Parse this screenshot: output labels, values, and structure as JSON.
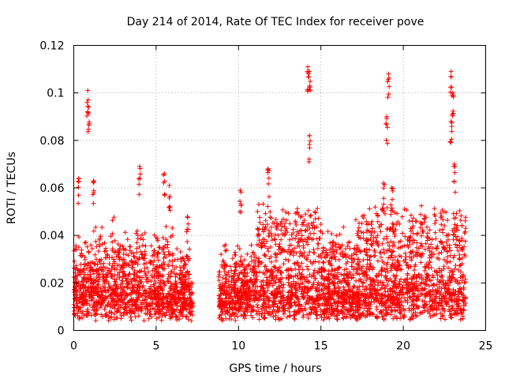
{
  "chart_data": {
    "type": "scatter",
    "title": "Day 214 of 2014, Rate Of TEC Index for receiver pove",
    "xlabel": "GPS time / hours",
    "ylabel": "ROTI / TECUs",
    "xlim": [
      0,
      25
    ],
    "ylim": [
      0,
      0.12
    ],
    "x_ticks": [
      0,
      5,
      10,
      15,
      20,
      25
    ],
    "x_tick_labels": [
      "0",
      "5",
      "10",
      "15",
      "20",
      "25"
    ],
    "y_ticks": [
      0,
      0.02,
      0.04,
      0.06,
      0.08,
      0.1,
      0.12
    ],
    "y_tick_labels": [
      "0",
      "0.02",
      "0.04",
      "0.06",
      "0.08",
      "0.1",
      "0.12"
    ],
    "grid": true,
    "marker": "plus",
    "color": "#ff0000",
    "series": [
      {
        "name": "ROTI",
        "coverage_hours": [
          [
            0.0,
            7.2
          ],
          [
            8.8,
            23.8
          ]
        ],
        "typical_range": [
          0.005,
          0.04
        ],
        "peaks": [
          {
            "x": 0.85,
            "y": 0.101
          },
          {
            "x": 0.9,
            "y": 0.094
          },
          {
            "x": 0.3,
            "y": 0.064
          },
          {
            "x": 1.2,
            "y": 0.063
          },
          {
            "x": 4.0,
            "y": 0.069
          },
          {
            "x": 5.5,
            "y": 0.066
          },
          {
            "x": 5.8,
            "y": 0.061
          },
          {
            "x": 6.9,
            "y": 0.048
          },
          {
            "x": 10.1,
            "y": 0.059
          },
          {
            "x": 11.8,
            "y": 0.068
          },
          {
            "x": 14.2,
            "y": 0.111
          },
          {
            "x": 14.3,
            "y": 0.109
          },
          {
            "x": 14.3,
            "y": 0.082
          },
          {
            "x": 18.8,
            "y": 0.062
          },
          {
            "x": 19.1,
            "y": 0.108
          },
          {
            "x": 19.0,
            "y": 0.09
          },
          {
            "x": 19.3,
            "y": 0.06
          },
          {
            "x": 22.9,
            "y": 0.109
          },
          {
            "x": 23.0,
            "y": 0.1
          },
          {
            "x": 22.9,
            "y": 0.088
          },
          {
            "x": 23.1,
            "y": 0.07
          }
        ]
      }
    ]
  }
}
